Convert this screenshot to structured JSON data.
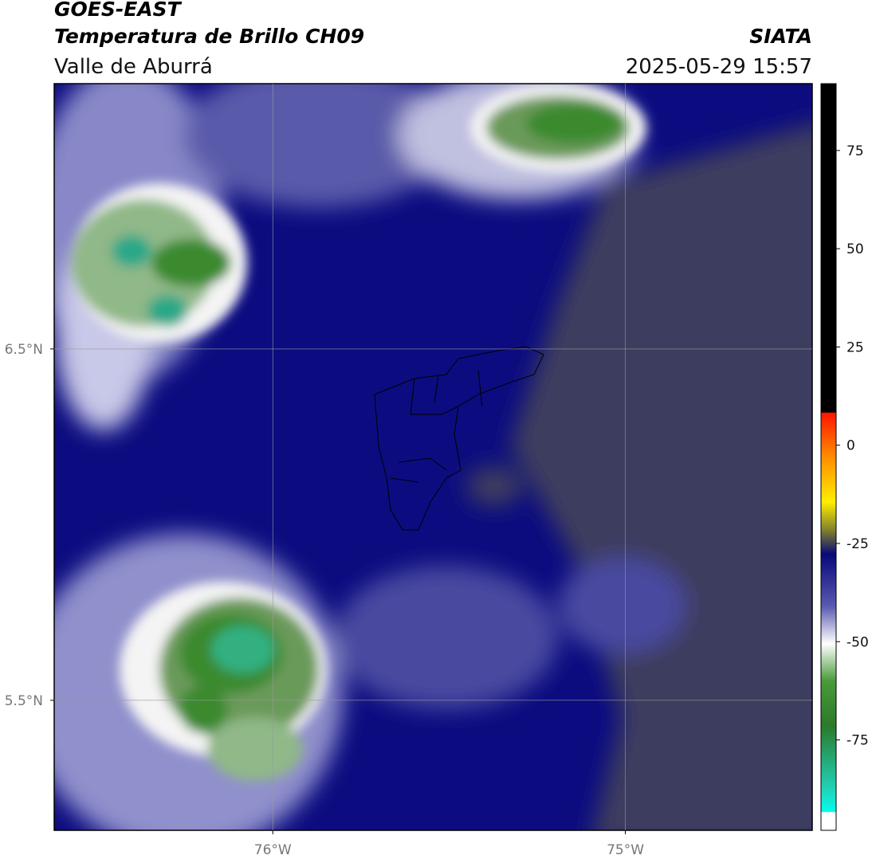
{
  "header": {
    "title": "GOES-EAST",
    "subtitle": "Temperatura de Brillo CH09",
    "region": "Valle de Aburrá",
    "source": "SIATA",
    "timestamp": "2025-05-29 15:57"
  },
  "map": {
    "latlim": [
      5.13,
      7.255
    ],
    "lonlim": [
      -76.62,
      -74.47
    ],
    "lat_labels": [
      {
        "value": 6.5,
        "label": "6.5°N"
      },
      {
        "value": 5.5,
        "label": "5.5°N"
      }
    ],
    "lon_labels": [
      {
        "value": -76,
        "label": "76°W"
      },
      {
        "value": -75,
        "label": "75°W"
      }
    ]
  },
  "colorbar": {
    "lim": [
      -98,
      92
    ],
    "ticks": [
      75,
      50,
      25,
      0,
      -25,
      -50,
      -75
    ]
  }
}
